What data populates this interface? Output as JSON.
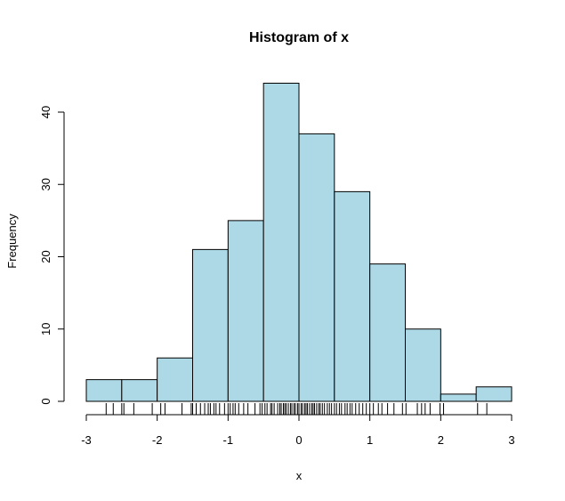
{
  "chart_data": {
    "type": "bar",
    "title": "Histogram of x",
    "xlabel": "x",
    "ylabel": "Frequency",
    "bin_edges": [
      -3,
      -2.5,
      -2,
      -1.5,
      -1,
      -0.5,
      0,
      0.5,
      1,
      1.5,
      2,
      2.5,
      3
    ],
    "values": [
      3,
      3,
      6,
      21,
      25,
      44,
      37,
      29,
      19,
      10,
      1,
      2
    ],
    "xlim": [
      -3,
      3
    ],
    "ylim": [
      0,
      44
    ],
    "xticks": [
      "-3",
      "-2",
      "-1",
      "0",
      "1",
      "2",
      "3"
    ],
    "yticks": [
      "0",
      "10",
      "20",
      "30",
      "40"
    ],
    "grid": false,
    "bar_color": "#add8e6",
    "rug": [
      -2.72,
      -2.62,
      -2.5,
      -2.47,
      -2.33,
      -2.07,
      -1.95,
      -1.89,
      -1.65,
      -1.52,
      -1.5,
      -1.45,
      -1.39,
      -1.33,
      -1.28,
      -1.25,
      -1.2,
      -1.17,
      -1.12,
      -1.05,
      -1.0,
      -0.97,
      -0.93,
      -0.9,
      -0.85,
      -0.78,
      -0.72,
      -0.62,
      -0.55,
      -0.52,
      -0.48,
      -0.45,
      -0.4,
      -0.38,
      -0.35,
      -0.3,
      -0.27,
      -0.25,
      -0.22,
      -0.2,
      -0.18,
      -0.15,
      -0.12,
      -0.1,
      -0.07,
      -0.05,
      -0.02,
      0.0,
      0.03,
      0.05,
      0.08,
      0.1,
      0.12,
      0.15,
      0.18,
      0.2,
      0.22,
      0.25,
      0.28,
      0.3,
      0.33,
      0.36,
      0.4,
      0.43,
      0.46,
      0.5,
      0.53,
      0.57,
      0.6,
      0.65,
      0.68,
      0.72,
      0.75,
      0.8,
      0.85,
      0.9,
      0.95,
      1.0,
      1.05,
      1.12,
      1.17,
      1.25,
      1.34,
      1.46,
      1.51,
      1.67,
      1.73,
      1.78,
      1.85,
      1.99,
      2.04,
      2.52,
      2.65
    ]
  }
}
